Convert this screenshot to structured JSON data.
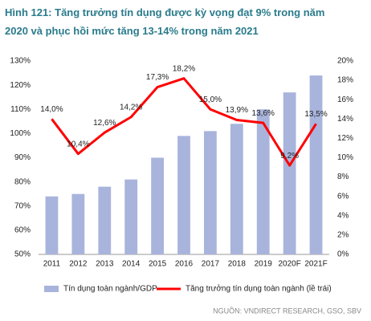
{
  "chart_data": {
    "type": "bar",
    "title_lines": [
      "Hình 121: Tăng trưởng tín dụng được kỳ vọng đạt 9% trong năm",
      "2020 và phục hồi mức tăng 13-14% trong năm 2021"
    ],
    "source": "NGUỒN: VNDIRECT RESEARCH, GSO, SBV",
    "categories": [
      "2011",
      "2012",
      "2013",
      "2014",
      "2015",
      "2016",
      "2017",
      "2018",
      "2019",
      "2020F",
      "2021F"
    ],
    "series": [
      {
        "name": "Tín dụng toàn ngành/GDP",
        "type": "bar",
        "color": "#a9b4dc",
        "values": [
          74,
          75,
          78,
          81,
          90,
          99,
          101,
          104,
          110,
          117,
          124
        ]
      },
      {
        "name": "Tăng trưởng tín dụng toàn ngành (lề trái)",
        "type": "line",
        "axis": "y2",
        "color": "#ff0000",
        "values": [
          14.0,
          10.4,
          12.6,
          14.2,
          17.3,
          18.2,
          15.0,
          13.9,
          13.6,
          9.2,
          13.5
        ],
        "value_labels": [
          "14,0%",
          "10,4%",
          "12,6%",
          "14,2%",
          "17,3%",
          "18,2%",
          "15,0%",
          "13,9%",
          "13,6%",
          "9,2%",
          "13,5%"
        ]
      }
    ],
    "ylim": [
      50,
      130
    ],
    "yticks": [
      {
        "value": 50,
        "label": "50%"
      },
      {
        "value": 60,
        "label": "60%"
      },
      {
        "value": 70,
        "label": "70%"
      },
      {
        "value": 80,
        "label": "80%"
      },
      {
        "value": 90,
        "label": "90%"
      },
      {
        "value": 100,
        "label": "100%"
      },
      {
        "value": 110,
        "label": "110%"
      },
      {
        "value": 120,
        "label": "120%"
      },
      {
        "value": 130,
        "label": "130%"
      }
    ],
    "y2lim": [
      0,
      20
    ],
    "y2ticks": [
      {
        "value": 0,
        "label": "0%"
      },
      {
        "value": 2,
        "label": "2%"
      },
      {
        "value": 4,
        "label": "4%"
      },
      {
        "value": 6,
        "label": "6%"
      },
      {
        "value": 8,
        "label": "8%"
      },
      {
        "value": 10,
        "label": "10%"
      },
      {
        "value": 12,
        "label": "12%"
      },
      {
        "value": 14,
        "label": "14%"
      },
      {
        "value": 16,
        "label": "16%"
      },
      {
        "value": 18,
        "label": "18%"
      },
      {
        "value": 20,
        "label": "20%"
      }
    ]
  }
}
